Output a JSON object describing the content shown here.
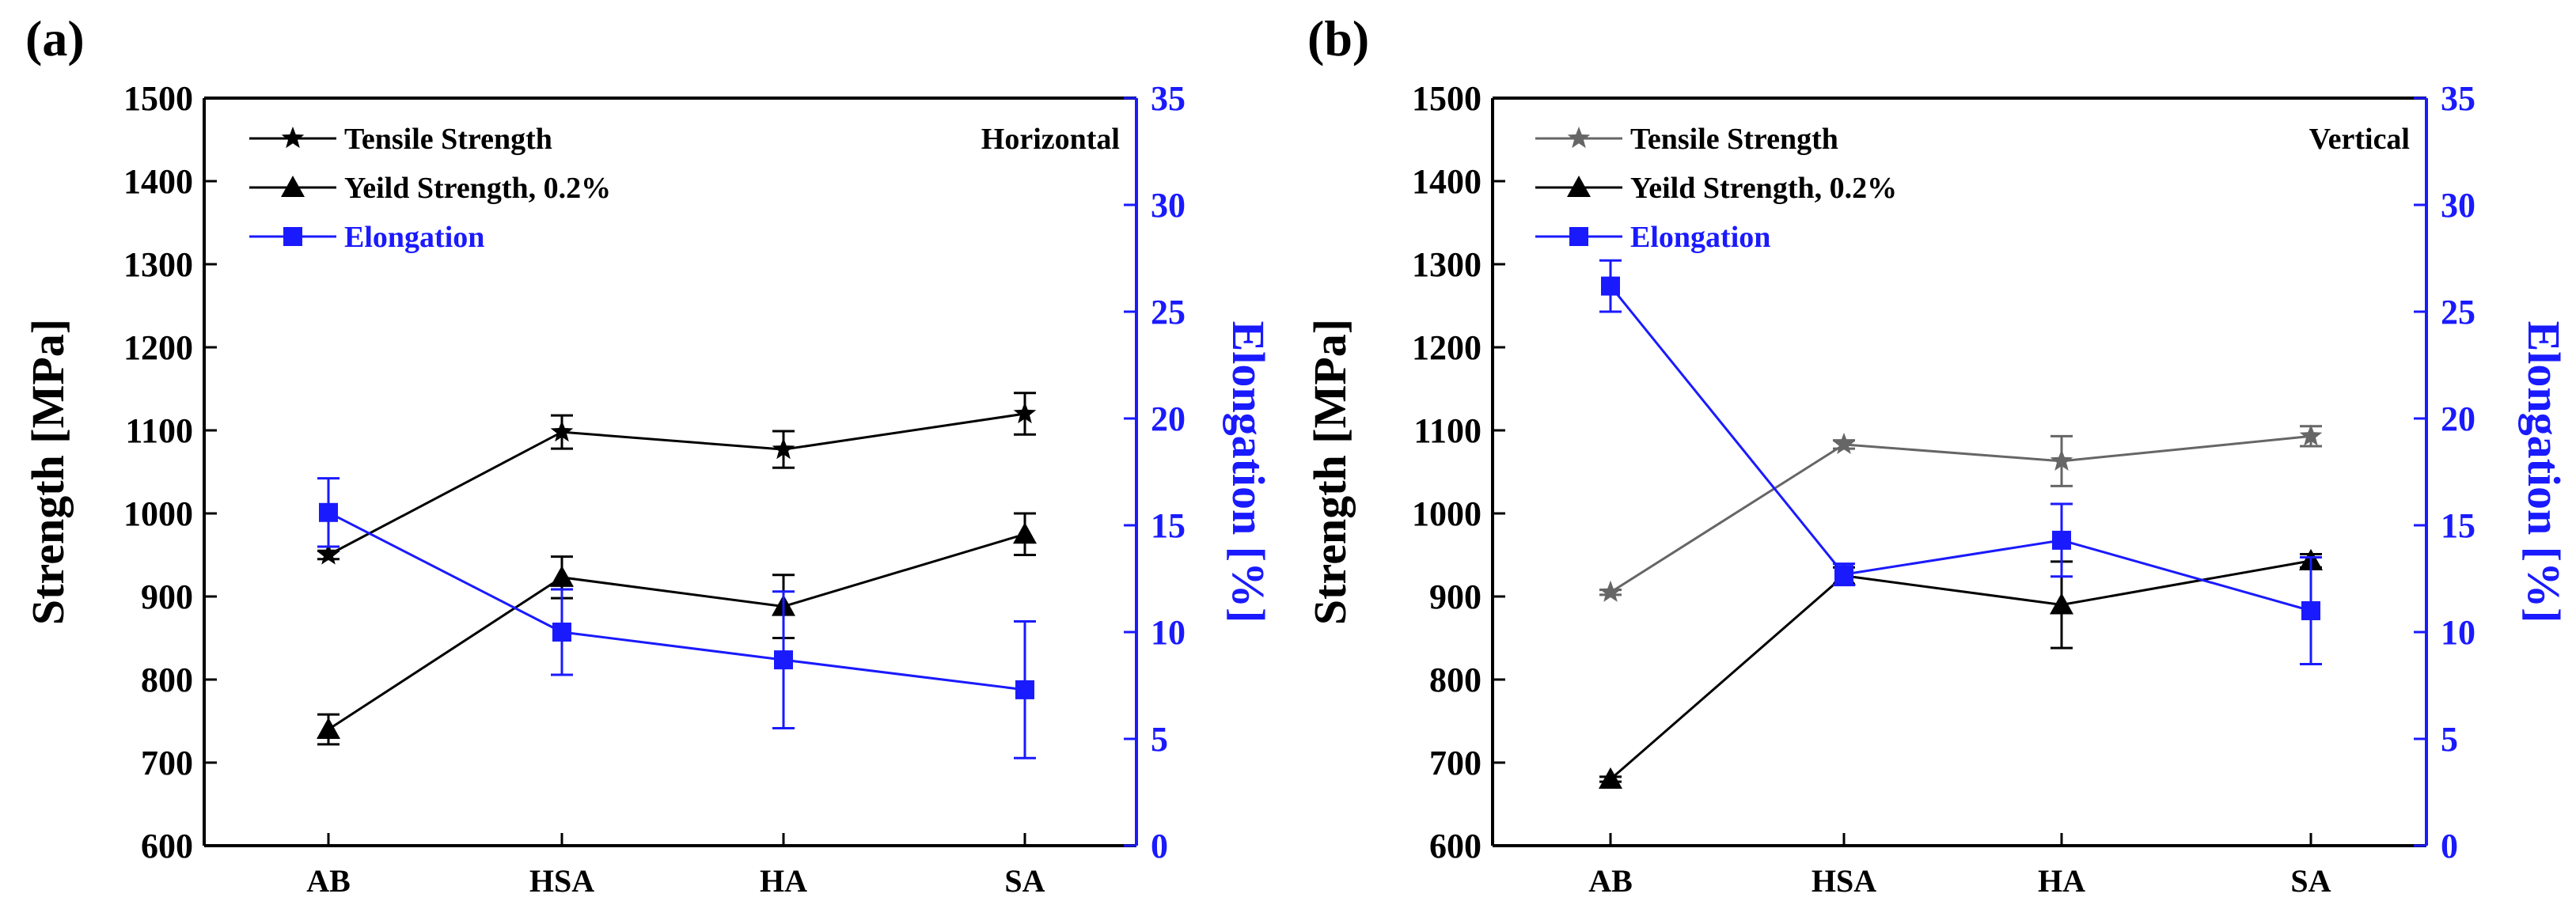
{
  "chart_data": [
    {
      "type": "line",
      "panel_label": "(a)",
      "orientation_label": "Horizontal",
      "categories": [
        "AB",
        "HSA",
        "HA",
        "SA"
      ],
      "ylabel_left": "Strength [MPa]",
      "ylim_left": [
        600,
        1500
      ],
      "yticks_left": [
        600,
        700,
        800,
        900,
        1000,
        1100,
        1200,
        1300,
        1400,
        1500
      ],
      "ylabel_right": "Elongation [%]",
      "ylim_right": [
        0,
        35
      ],
      "yticks_right": [
        0,
        5,
        10,
        15,
        20,
        25,
        30,
        35
      ],
      "series": [
        {
          "name": "Tensile Strength",
          "axis": "left",
          "marker": "star",
          "color": "#000000",
          "values": [
            950,
            1098,
            1077,
            1120
          ],
          "errors": [
            5,
            20,
            22,
            25
          ]
        },
        {
          "name": "Yeild Strength, 0.2%",
          "axis": "left",
          "marker": "triangle",
          "color": "#000000",
          "values": [
            740,
            923,
            888,
            975
          ],
          "errors": [
            18,
            25,
            38,
            25
          ]
        },
        {
          "name": "Elongation",
          "axis": "right",
          "marker": "square",
          "color": "#1a1aff",
          "values": [
            15.6,
            10.0,
            8.7,
            7.3
          ],
          "errors": [
            1.6,
            2.0,
            3.2,
            3.2
          ]
        }
      ]
    },
    {
      "type": "line",
      "panel_label": "(b)",
      "orientation_label": "Vertical",
      "categories": [
        "AB",
        "HSA",
        "HA",
        "SA"
      ],
      "ylabel_left": "Strength [MPa]",
      "ylim_left": [
        600,
        1500
      ],
      "yticks_left": [
        600,
        700,
        800,
        900,
        1000,
        1100,
        1200,
        1300,
        1400,
        1500
      ],
      "ylabel_right": "Elongation [%]",
      "ylim_right": [
        0,
        35
      ],
      "yticks_right": [
        0,
        5,
        10,
        15,
        20,
        25,
        30,
        35
      ],
      "series": [
        {
          "name": "Tensile Strength",
          "axis": "left",
          "marker": "star",
          "color": "#666666",
          "values": [
            905,
            1083,
            1063,
            1093
          ],
          "errors": [
            3,
            5,
            30,
            12
          ]
        },
        {
          "name": "Yeild Strength, 0.2%",
          "axis": "left",
          "marker": "triangle",
          "color": "#000000",
          "values": [
            680,
            925,
            890,
            943
          ],
          "errors": [
            3,
            10,
            52,
            8
          ]
        },
        {
          "name": "Elongation",
          "axis": "right",
          "marker": "square",
          "color": "#1a1aff",
          "values": [
            26.2,
            12.7,
            14.3,
            11.0
          ],
          "errors": [
            1.2,
            0.5,
            1.7,
            2.5
          ]
        }
      ]
    }
  ]
}
